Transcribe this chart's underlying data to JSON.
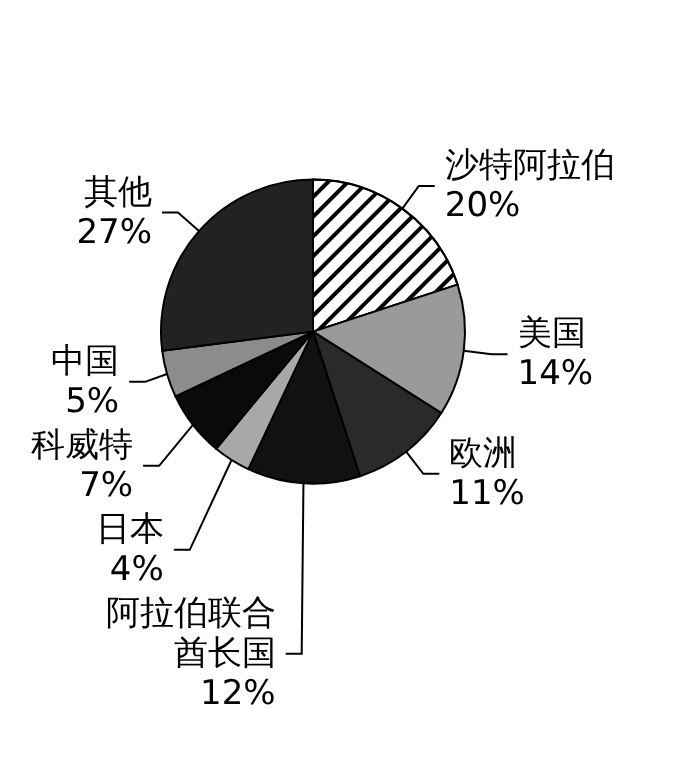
{
  "chart_data": {
    "type": "pie",
    "categories": [
      "沙特阿拉伯",
      "美国",
      "欧洲",
      "阿拉伯联合酋长国",
      "日本",
      "科威特",
      "中国",
      "其他"
    ],
    "values": [
      20,
      14,
      11,
      12,
      4,
      7,
      5,
      27
    ],
    "value_labels": [
      "20%",
      "14%",
      "11%",
      "12%",
      "4%",
      "7%",
      "5%",
      "27%"
    ],
    "colors": [
      "#ffffff",
      "#9a9a9a",
      "#2a2a2a",
      "#111111",
      "#a8a8a8",
      "#0a0a0a",
      "#8c8c8c",
      "#222222"
    ],
    "legend": false
  }
}
